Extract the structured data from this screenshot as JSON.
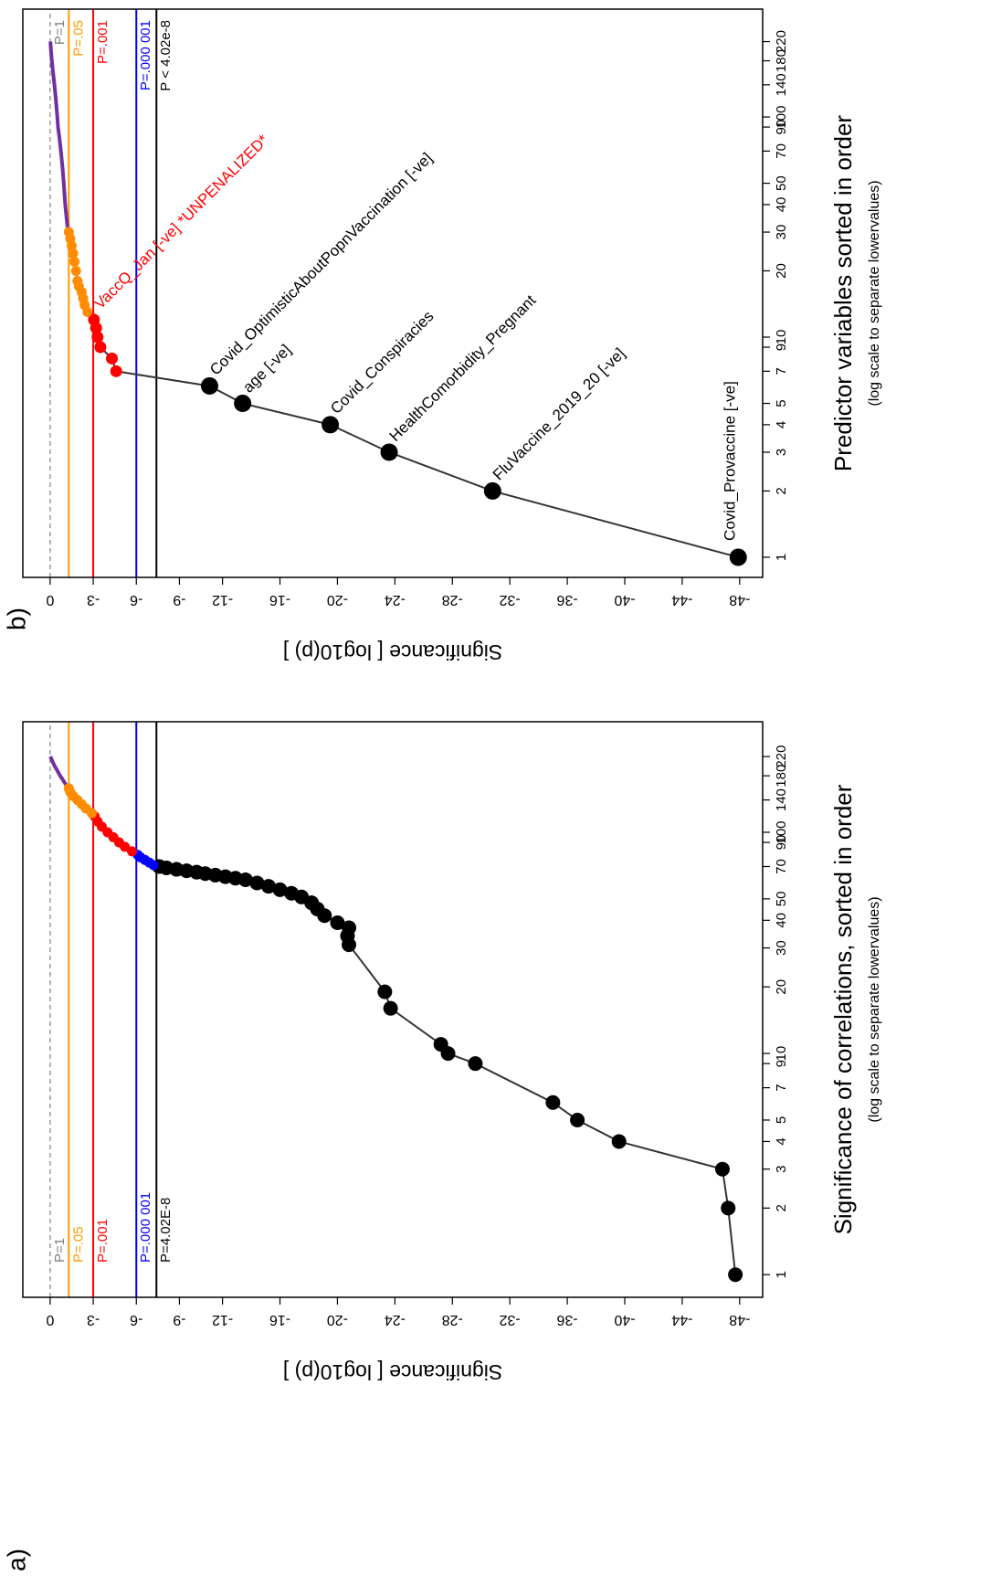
{
  "chart_data": [
    {
      "type": "line",
      "panel_label": "a)",
      "y_label": "Significance [ log10(p) ]",
      "x_label": "Significance of correlations, sorted in order",
      "x_sublabel": "(log scale to separate lowervalues)",
      "log_x": true,
      "xlim": [
        0.79,
        316
      ],
      "ylim": [
        1.9,
        -49.6
      ],
      "xticks": [
        1,
        2,
        3,
        4,
        5,
        7,
        9,
        10,
        20,
        30,
        40,
        50,
        70,
        90,
        100,
        140,
        180,
        220
      ],
      "yticks": [
        0,
        -3,
        -6,
        -9,
        -12,
        -16,
        -20,
        -24,
        -28,
        -32,
        -36,
        -40,
        -44,
        -48
      ],
      "reference_label_position": "left",
      "reference_lines": [
        {
          "value": 0,
          "label": "P=1",
          "color": "#808080",
          "dashed": true
        },
        {
          "value": -1.3,
          "label": "P=.05",
          "color": "#ff9900",
          "dashed": false
        },
        {
          "value": -3,
          "label": "P=.001",
          "color": "#ff0000",
          "dashed": false
        },
        {
          "value": -6,
          "label": "P=.000 001",
          "color": "#0000ff",
          "dashed": false
        },
        {
          "value": -7.4,
          "label": "P=4.02E-8",
          "color": "#000000",
          "dashed": false
        }
      ],
      "series": [
        {
          "color": "#000000",
          "markers": true,
          "x": [
            1,
            2,
            3,
            4,
            5,
            6,
            9,
            10,
            11,
            16,
            19,
            31,
            34,
            37,
            39,
            42,
            45,
            48,
            51,
            53,
            55,
            57,
            59,
            61,
            62,
            63,
            64,
            65,
            66,
            67,
            68,
            69,
            70
          ],
          "values": [
            -47.7,
            -47.2,
            -46.8,
            -39.6,
            -36.7,
            -35.0,
            -29.6,
            -27.7,
            -27.2,
            -23.7,
            -23.3,
            -20.8,
            -20.7,
            -20.8,
            -20.0,
            -19.1,
            -18.6,
            -18.2,
            -17.5,
            -16.8,
            -16.0,
            -15.2,
            -14.4,
            -13.6,
            -12.9,
            -12.2,
            -11.5,
            -10.8,
            -10.2,
            -9.5,
            -8.8,
            -8.1,
            -7.6
          ]
        },
        {
          "color": "#0000ff",
          "markers": true,
          "x": [
            71,
            73,
            75,
            77,
            79
          ],
          "values": [
            -7.2,
            -6.9,
            -6.6,
            -6.3,
            -6.1
          ]
        },
        {
          "color": "#ff0000",
          "markers": true,
          "x": [
            82,
            86,
            90,
            95,
            100,
            106,
            112,
            118
          ],
          "values": [
            -5.7,
            -5.2,
            -4.8,
            -4.4,
            -4.0,
            -3.6,
            -3.3,
            -3.1
          ]
        },
        {
          "color": "#ff8c00",
          "markers": true,
          "x": [
            122,
            128,
            134,
            140,
            146,
            152,
            158
          ],
          "values": [
            -2.9,
            -2.5,
            -2.2,
            -1.9,
            -1.6,
            -1.4,
            -1.3
          ]
        },
        {
          "color": "#7030a0",
          "markers": false,
          "x": [
            164,
            172,
            180,
            190,
            200,
            210,
            220
          ],
          "values": [
            -1.1,
            -0.9,
            -0.7,
            -0.5,
            -0.3,
            -0.15,
            -0.02
          ]
        }
      ]
    },
    {
      "type": "line",
      "panel_label": "b)",
      "y_label": "Significance [ log10(p) ]",
      "x_label": "Predictor variables sorted in order",
      "x_sublabel": "(log scale to separate lowervalues)",
      "log_x": true,
      "xlim": [
        0.81,
        309
      ],
      "ylim": [
        1.9,
        -49.6
      ],
      "xticks": [
        1,
        2,
        3,
        4,
        5,
        7,
        9,
        10,
        20,
        30,
        40,
        50,
        70,
        90,
        100,
        140,
        180,
        220
      ],
      "yticks": [
        0,
        -3,
        -6,
        -9,
        -12,
        -16,
        -20,
        -24,
        -28,
        -32,
        -36,
        -40,
        -44,
        -48
      ],
      "reference_label_position": "right",
      "reference_lines": [
        {
          "value": 0,
          "label": "P=1",
          "color": "#808080",
          "dashed": true
        },
        {
          "value": -1.3,
          "label": "P=.05",
          "color": "#ff9900",
          "dashed": false
        },
        {
          "value": -3,
          "label": "P=.001",
          "color": "#ff0000",
          "dashed": false
        },
        {
          "value": -6,
          "label": "P=.000 001",
          "color": "#0000ff",
          "dashed": false
        },
        {
          "value": -7.4,
          "label": "P < 4.02e-8",
          "color": "#000000",
          "dashed": false
        }
      ],
      "series": [
        {
          "color": "#000000",
          "markers": true,
          "x": [
            1,
            2,
            3,
            4,
            5,
            6
          ],
          "values": [
            -47.9,
            -30.8,
            -23.6,
            -19.5,
            -13.4,
            -11.1
          ],
          "point_labels": [
            "Covid_Provaccine [-ve]",
            "FluVaccine_2019_20 [-ve]",
            "HealthComorbidity_Pregnant",
            "Covid_Conspiracies",
            "age [-ve]",
            "Covid_OptimisticAboutPopnVaccination [-ve]"
          ]
        },
        {
          "color": "#ff0000",
          "markers": true,
          "x": [
            7,
            8,
            9,
            10,
            11,
            12
          ],
          "values": [
            -4.6,
            -4.3,
            -3.5,
            -3.3,
            -3.2,
            -3.05
          ],
          "point_labels": [
            null,
            null,
            null,
            null,
            null,
            "VaccQ_Jan [-ve] *UNPENALIZED*"
          ]
        },
        {
          "color": "#ff8c00",
          "markers": true,
          "x": [
            13,
            14,
            15,
            16,
            17,
            18,
            20,
            22,
            24,
            26,
            28,
            30
          ],
          "values": [
            -2.6,
            -2.4,
            -2.3,
            -2.2,
            -2.0,
            -1.9,
            -1.8,
            -1.7,
            -1.6,
            -1.5,
            -1.4,
            -1.3
          ]
        },
        {
          "color": "#7030a0",
          "markers": false,
          "x": [
            32,
            40,
            50,
            60,
            70,
            80,
            90,
            100,
            120,
            140,
            160,
            180,
            200,
            220
          ],
          "values": [
            -1.2,
            -1.05,
            -0.95,
            -0.85,
            -0.75,
            -0.65,
            -0.55,
            -0.5,
            -0.4,
            -0.3,
            -0.2,
            -0.12,
            -0.06,
            -0.02
          ]
        }
      ]
    }
  ]
}
